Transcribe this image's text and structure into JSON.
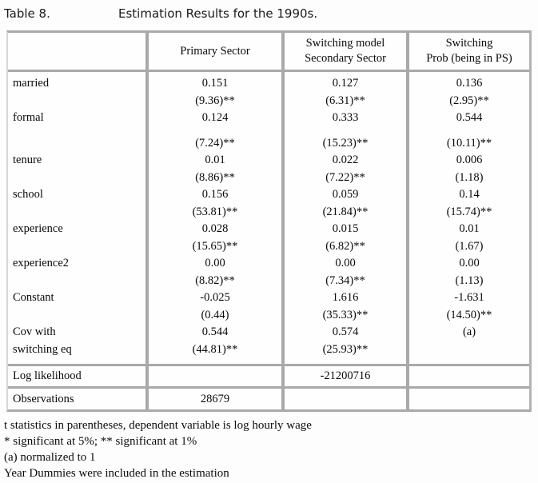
{
  "title": {
    "label": "Table 8.",
    "text": "Estimation Results for the 1990s."
  },
  "table": {
    "columns": [
      "",
      "Primary Sector",
      "Switching model\nSecondary Sector",
      "Switching\nProb (being in PS)"
    ],
    "rows": [
      {
        "label": "married",
        "primary": "0.151",
        "secondary": "0.127",
        "switching": "0.136"
      },
      {
        "label": "",
        "primary": "(9.36)**",
        "secondary": "(6.31)**",
        "switching": "(2.95)**"
      },
      {
        "label": "formal",
        "primary": "0.124",
        "secondary": "0.333",
        "switching": "0.544"
      },
      {
        "label": "",
        "primary": "(7.24)**",
        "secondary": "(15.23)**",
        "switching": "(10.11)**"
      },
      {
        "label": "tenure",
        "primary": "0.01",
        "secondary": "0.022",
        "switching": "0.006"
      },
      {
        "label": "",
        "primary": "(8.86)**",
        "secondary": "(7.22)**",
        "switching": "(1.18)"
      },
      {
        "label": "school",
        "primary": "0.156",
        "secondary": "0.059",
        "switching": "0.14"
      },
      {
        "label": "",
        "primary": "(53.81)**",
        "secondary": "(21.84)**",
        "switching": "(15.74)**"
      },
      {
        "label": "experience",
        "primary": "0.028",
        "secondary": "0.015",
        "switching": "0.01"
      },
      {
        "label": "",
        "primary": "(15.65)**",
        "secondary": "(6.82)**",
        "switching": "(1.67)"
      },
      {
        "label": "experience2",
        "primary": "0.00",
        "secondary": "0.00",
        "switching": "0.00"
      },
      {
        "label": "",
        "primary": "(8.82)**",
        "secondary": "(7.34)**",
        "switching": "(1.13)"
      },
      {
        "label": "Constant",
        "primary": "-0.025",
        "secondary": "1.616",
        "switching": "-1.631"
      },
      {
        "label": "",
        "primary": "(0.44)",
        "secondary": "(35.33)**",
        "switching": "(14.50)**"
      },
      {
        "label": "Cov with",
        "primary": "0.544",
        "secondary": "0.574",
        "switching": "(a)"
      },
      {
        "label": "switching eq",
        "primary": "(44.81)**",
        "secondary": "(25.93)**",
        "switching": ""
      }
    ],
    "log_likelihood": {
      "label": "Log likelihood",
      "primary": "",
      "secondary": "-21200716",
      "switching": ""
    },
    "observations": {
      "label": "Observations",
      "primary": "28679",
      "secondary": "",
      "switching": ""
    }
  },
  "footnotes": [
    "t statistics in parentheses, dependent variable is log hourly wage",
    "* significant at 5%; ** significant at 1%",
    "(a) normalized to 1",
    "Year Dummies were included in the estimation"
  ],
  "colors": {
    "rule_gray": "#a9a9a9",
    "background": "#fdfdfd",
    "text": "#0a0a0a"
  }
}
